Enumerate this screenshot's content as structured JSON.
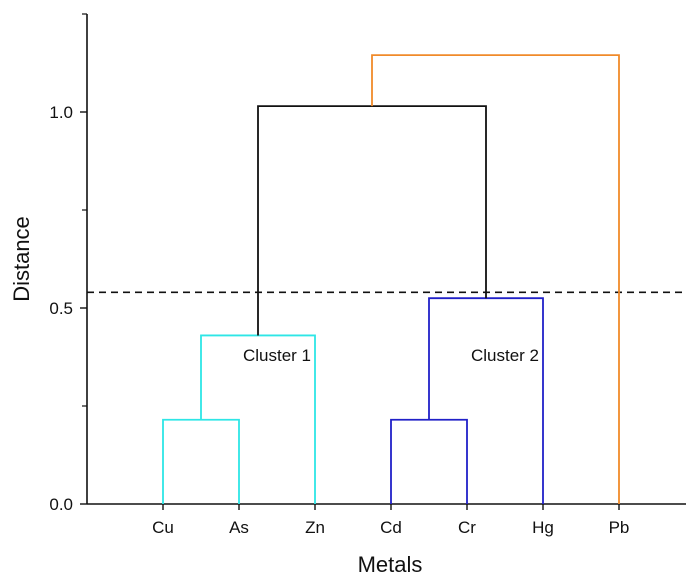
{
  "chart_data": {
    "type": "dendrogram",
    "xlabel": "Metals",
    "ylabel": "Distance",
    "leaves": [
      "Cu",
      "As",
      "Zn",
      "Cd",
      "Cr",
      "Hg",
      "Pb"
    ],
    "ylim": [
      0,
      1.25
    ],
    "yticks": [
      {
        "value": 0.0,
        "label": "0.0"
      },
      {
        "value": 0.5,
        "label": "0.5"
      },
      {
        "value": 1.0,
        "label": "1.0"
      }
    ],
    "y_minor_ticks": [
      0.25,
      0.75,
      1.25
    ],
    "threshold": 0.54,
    "links": [
      {
        "name": "Cu-As",
        "left": "Cu",
        "right": "As",
        "height": 0.215,
        "color": "#2ee6e6"
      },
      {
        "name": "CuAs-Zn",
        "left": "Cu-As",
        "right": "Zn",
        "height": 0.43,
        "color": "#2ee6e6"
      },
      {
        "name": "Cd-Cr",
        "left": "Cd",
        "right": "Cr",
        "height": 0.215,
        "color": "#2020c8"
      },
      {
        "name": "CdCr-Hg",
        "left": "Cd-Cr",
        "right": "Hg",
        "height": 0.525,
        "color": "#2020c8"
      },
      {
        "name": "C1-C2",
        "left": "CuAs-Zn",
        "right": "CdCr-Hg",
        "height": 1.015,
        "color": "#111111"
      },
      {
        "name": "All-Pb",
        "left": "C1-C2",
        "right": "Pb",
        "height": 1.145,
        "color": "#f08a2a"
      }
    ],
    "annotations": [
      {
        "text": "Cluster 1",
        "x_between": [
          "As",
          "Zn"
        ],
        "y": 0.37
      },
      {
        "text": "Cluster 2",
        "x_between": [
          "Cr",
          "Hg"
        ],
        "y": 0.37
      }
    ]
  }
}
